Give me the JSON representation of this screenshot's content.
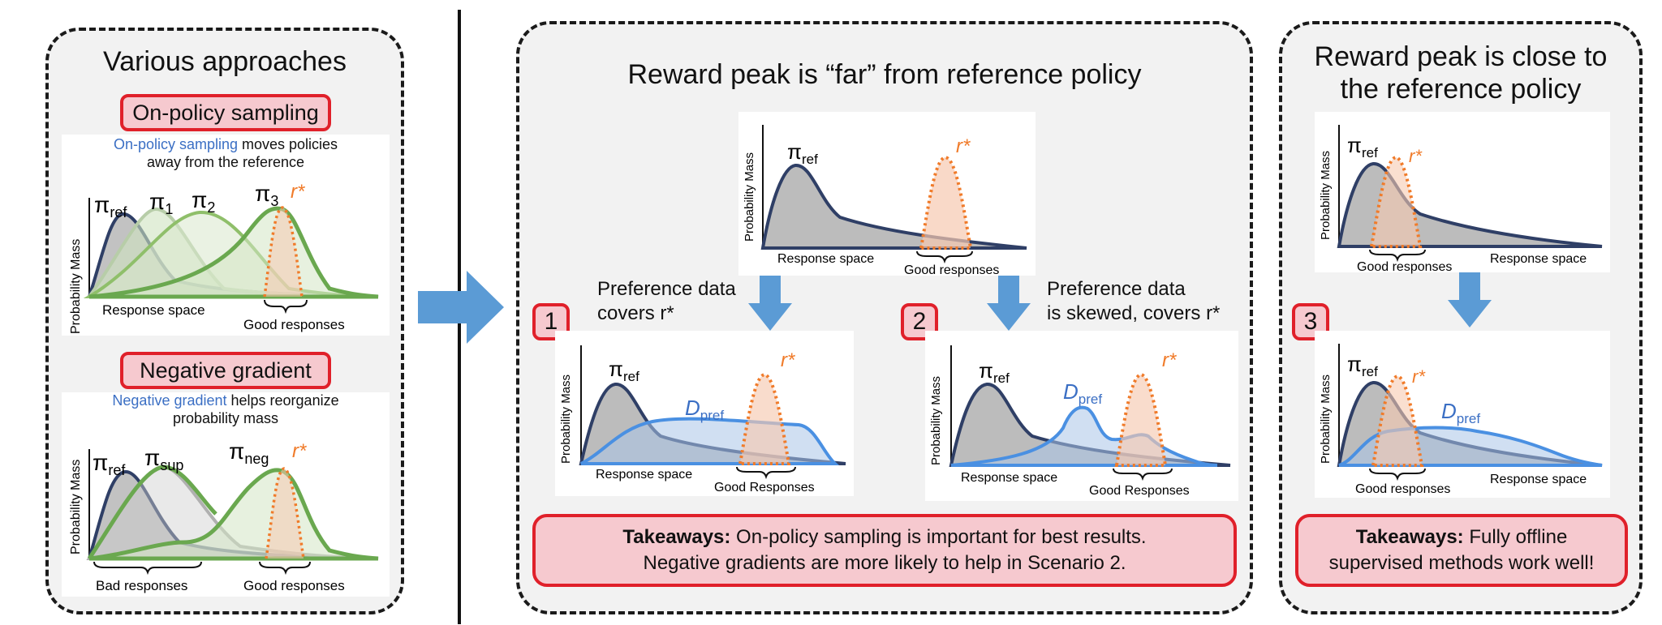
{
  "left_panel": {
    "title": "Various approaches",
    "onpolicy": {
      "label": "On-policy sampling",
      "note_blue": "On-policy sampling",
      "note_rest1": " moves policies",
      "note_rest2": "away from the reference",
      "ylabel": "Probability Mass",
      "xlabel": "Response space",
      "good": "Good responses",
      "pi": "π",
      "ref": "ref",
      "s1": "1",
      "s2": "2",
      "s3": "3",
      "rstar": "r*"
    },
    "neggrad": {
      "label": "Negative gradient",
      "note_blue": "Negative gradient",
      "note_rest1": " helps reorganize",
      "note_rest2": "probability mass",
      "ylabel": "Probability Mass",
      "bad": "Bad responses",
      "good": "Good responses",
      "pi": "π",
      "ref": "ref",
      "sup": "sup",
      "neg": "neg",
      "rstar": "r*"
    }
  },
  "middle_panel": {
    "title": "Reward peak is “far” from reference policy",
    "top_fig": {
      "ylabel": "Probability Mass",
      "xlabel": "Response space",
      "good": "Good responses",
      "pi": "π",
      "ref": "ref",
      "rstar": "r*"
    },
    "scenario1": {
      "num": "1",
      "caption_l1": "Preference data",
      "caption_l2": "covers r*",
      "ylabel": "Probability Mass",
      "xlabel": "Response space",
      "good": "Good Responses",
      "pi": "π",
      "ref": "ref",
      "D": "D",
      "pref": "pref",
      "rstar": "r*"
    },
    "scenario2": {
      "num": "2",
      "caption_l1": "Preference data",
      "caption_l2": "is skewed, covers r*",
      "ylabel": "Probability Mass",
      "xlabel": "Response space",
      "good": "Good Responses",
      "pi": "π",
      "ref": "ref",
      "D": "D",
      "pref": "pref",
      "rstar": "r*"
    },
    "takeaway_bold": "Takeaways:",
    "takeaway_l1": " On-policy sampling is important for best results.",
    "takeaway_l2": "Negative gradients are more likely to help in Scenario 2."
  },
  "right_panel": {
    "title_l1": "Reward peak is close to",
    "title_l2": "the reference policy",
    "top_fig": {
      "ylabel": "Probability Mass",
      "xlabel": "Response space",
      "good": "Good responses",
      "pi": "π",
      "ref": "ref",
      "rstar": "r*"
    },
    "scenario3": {
      "num": "3",
      "ylabel": "Probability Mass",
      "xlabel": "Response space",
      "good": "Good responses",
      "pi": "π",
      "ref": "ref",
      "D": "D",
      "pref": "pref",
      "rstar": "r*"
    },
    "takeaway_bold": "Takeaways:",
    "takeaway_l1": " Fully offline",
    "takeaway_l2": "supervised methods work well!"
  },
  "colors": {
    "red_border": "#e0202a",
    "red_fill": "#f6c9cf",
    "blue_arrow": "#5b9bd5",
    "ref_curve": "#2f3f66",
    "green": "#6aa84f",
    "orange": "#f07b2a",
    "dpref_blue": "#4a90e2"
  }
}
